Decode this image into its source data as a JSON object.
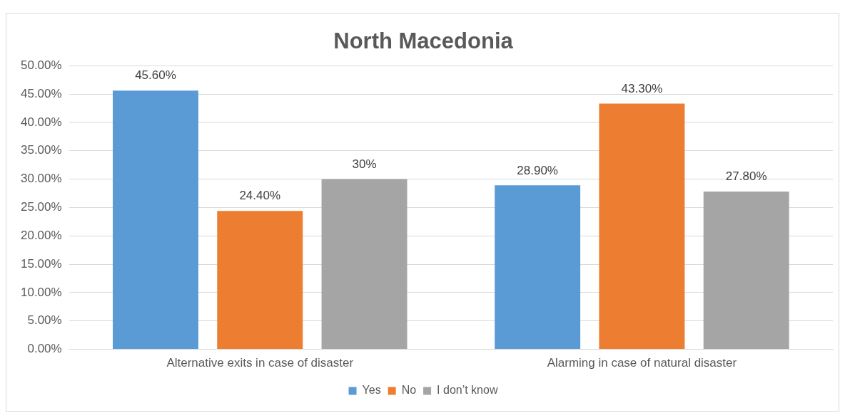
{
  "chart_data": {
    "type": "bar",
    "title": "North Macedonia",
    "categories": [
      "Alternative exits in case of disaster",
      "Alarming in case of natural disaster"
    ],
    "series": [
      {
        "name": "Yes",
        "color": "#5b9bd5",
        "values": [
          45.6,
          28.9
        ],
        "value_labels": [
          "45.60%",
          "28.90%"
        ]
      },
      {
        "name": "No",
        "color": "#ed7d31",
        "values": [
          24.4,
          43.3
        ],
        "value_labels": [
          "24.40%",
          "43.30%"
        ]
      },
      {
        "name": "I don’t know",
        "color": "#a5a5a5",
        "values": [
          30,
          27.8
        ],
        "value_labels": [
          "30%",
          "27.80%"
        ]
      }
    ],
    "ylim": [
      0,
      50
    ],
    "yticks": [
      {
        "value": 0,
        "label": "0.00%"
      },
      {
        "value": 5,
        "label": "5.00%"
      },
      {
        "value": 10,
        "label": "10.00%"
      },
      {
        "value": 15,
        "label": "15.00%"
      },
      {
        "value": 20,
        "label": "20.00%"
      },
      {
        "value": 25,
        "label": "25.00%"
      },
      {
        "value": 30,
        "label": "30.00%"
      },
      {
        "value": 35,
        "label": "35.00%"
      },
      {
        "value": 40,
        "label": "40.00%"
      },
      {
        "value": 45,
        "label": "45.00%"
      },
      {
        "value": 50,
        "label": "50.00%"
      }
    ],
    "grid": "y",
    "legend": "bottom"
  }
}
